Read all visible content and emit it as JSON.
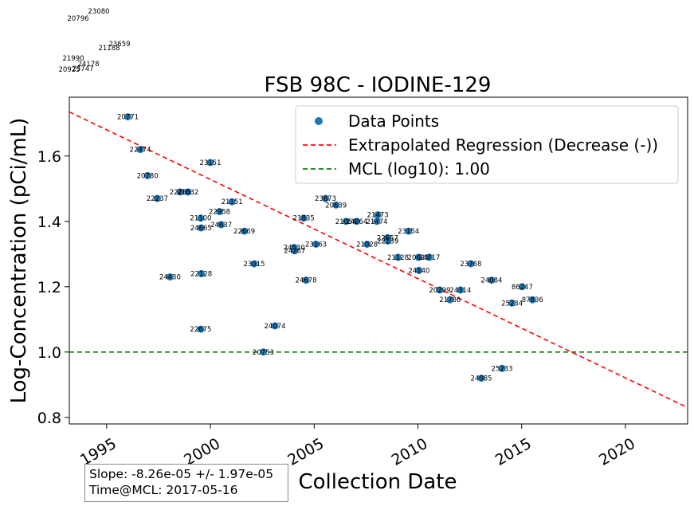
{
  "chart_data": {
    "type": "scatter",
    "title": "FSB 98C - IODINE-129",
    "xlabel": "Collection Date",
    "ylabel": "Log-Concentration (pCi/mL)",
    "xlim": [
      "1993-03-15",
      "2022-12-31"
    ],
    "ylim": [
      0.78,
      1.78
    ],
    "x_ticks": [
      "1995",
      "2000",
      "2005",
      "2010",
      "2015",
      "2020"
    ],
    "y_ticks": [
      "0.8",
      "1.0",
      "1.2",
      "1.4",
      "1.6"
    ],
    "legend": {
      "placement": "top-right",
      "entries": [
        "Data Points",
        "Extrapolated Regression (Decrease (-))",
        "MCL (log10): 1.00"
      ]
    },
    "colors": {
      "points": "#1f77b4",
      "regression": "#ff0000",
      "mcl": "#008000"
    },
    "series": [
      {
        "name": "Data Points",
        "points": [
          {
            "x": "1996-01-10",
            "y": 1.72,
            "label": "20771"
          },
          {
            "x": "1996-08-15",
            "y": 1.62,
            "label": "22474"
          },
          {
            "x": "1996-12-20",
            "y": 1.54,
            "label": "20780"
          },
          {
            "x": "1997-06-10",
            "y": 1.47,
            "label": "22237"
          },
          {
            "x": "1998-07-20",
            "y": 1.49,
            "label": "22255"
          },
          {
            "x": "1998-12-01",
            "y": 1.49,
            "label": "21032"
          },
          {
            "x": "1999-12-31",
            "y": 1.58,
            "label": "23151"
          },
          {
            "x": "2001-01-15",
            "y": 1.46,
            "label": "21151"
          },
          {
            "x": "2000-06-10",
            "y": 1.43,
            "label": "22958"
          },
          {
            "x": "1999-07-15",
            "y": 1.41,
            "label": "21100"
          },
          {
            "x": "2000-07-10",
            "y": 1.39,
            "label": "24637"
          },
          {
            "x": "1999-07-20",
            "y": 1.38,
            "label": "24665"
          },
          {
            "x": "2001-08-20",
            "y": 1.37,
            "label": "22669"
          },
          {
            "x": "1998-01-20",
            "y": 1.23,
            "label": "24430"
          },
          {
            "x": "1999-07-25",
            "y": 1.24,
            "label": "22128"
          },
          {
            "x": "2002-02-10",
            "y": 1.27,
            "label": "23015"
          },
          {
            "x": "2004-01-15",
            "y": 1.32,
            "label": "24530"
          },
          {
            "x": "2004-01-25",
            "y": 1.31,
            "label": "24267"
          },
          {
            "x": "2005-02-01",
            "y": 1.33,
            "label": "23163"
          },
          {
            "x": "2004-08-10",
            "y": 1.22,
            "label": "24678"
          },
          {
            "x": "2003-02-10",
            "y": 1.08,
            "label": "24074"
          },
          {
            "x": "1999-07-15",
            "y": 1.07,
            "label": "22675"
          },
          {
            "x": "2002-07-20",
            "y": 1.0,
            "label": "20753"
          },
          {
            "x": "2004-07-01",
            "y": 1.41,
            "label": "21835"
          },
          {
            "x": "2005-07-20",
            "y": 1.47,
            "label": "23873"
          },
          {
            "x": "2006-01-20",
            "y": 1.45,
            "label": "20639"
          },
          {
            "x": "2006-07-15",
            "y": 1.4,
            "label": "21054"
          },
          {
            "x": "2007-01-20",
            "y": 1.4,
            "label": "24264"
          },
          {
            "x": "2008-01-25",
            "y": 1.42,
            "label": "21473"
          },
          {
            "x": "2008-01-10",
            "y": 1.4,
            "label": "21474"
          },
          {
            "x": "2007-07-20",
            "y": 1.33,
            "label": "21028"
          },
          {
            "x": "2008-07-15",
            "y": 1.35,
            "label": "22657"
          },
          {
            "x": "2008-07-20",
            "y": 1.34,
            "label": "22139"
          },
          {
            "x": "2009-07-20",
            "y": 1.37,
            "label": "23154"
          },
          {
            "x": "2009-01-15",
            "y": 1.29,
            "label": "21128"
          },
          {
            "x": "2010-01-10",
            "y": 1.29,
            "label": "20625"
          },
          {
            "x": "2010-07-20",
            "y": 1.29,
            "label": "24717"
          },
          {
            "x": "2010-01-20",
            "y": 1.25,
            "label": "24140"
          },
          {
            "x": "2011-01-20",
            "y": 1.19,
            "label": "20299"
          },
          {
            "x": "2012-01-20",
            "y": 1.19,
            "label": "24314"
          },
          {
            "x": "2011-07-20",
            "y": 1.16,
            "label": "21786"
          },
          {
            "x": "2012-07-20",
            "y": 1.27,
            "label": "23768"
          },
          {
            "x": "2013-07-20",
            "y": 1.22,
            "label": "24084"
          },
          {
            "x": "2015-01-10",
            "y": 1.2,
            "label": "86247"
          },
          {
            "x": "2014-07-15",
            "y": 1.15,
            "label": "25234"
          },
          {
            "x": "2015-07-10",
            "y": 1.16,
            "label": "87836"
          },
          {
            "x": "2014-01-20",
            "y": 0.95,
            "label": "25233"
          },
          {
            "x": "2013-01-20",
            "y": 0.92,
            "label": "24085"
          }
        ]
      }
    ],
    "regression": {
      "y_at_xmin": 1.735,
      "y_at_xmax": 0.83
    },
    "mcl": 1.0,
    "overflow_labels": [
      "23080",
      "20796",
      "23659",
      "21188",
      "21990",
      "24178",
      "20925",
      "23747"
    ],
    "stats": {
      "slope": "Slope: -8.26e-05 +/- 1.97e-05",
      "time_at_mcl": "Time@MCL: 2017-05-16"
    }
  }
}
